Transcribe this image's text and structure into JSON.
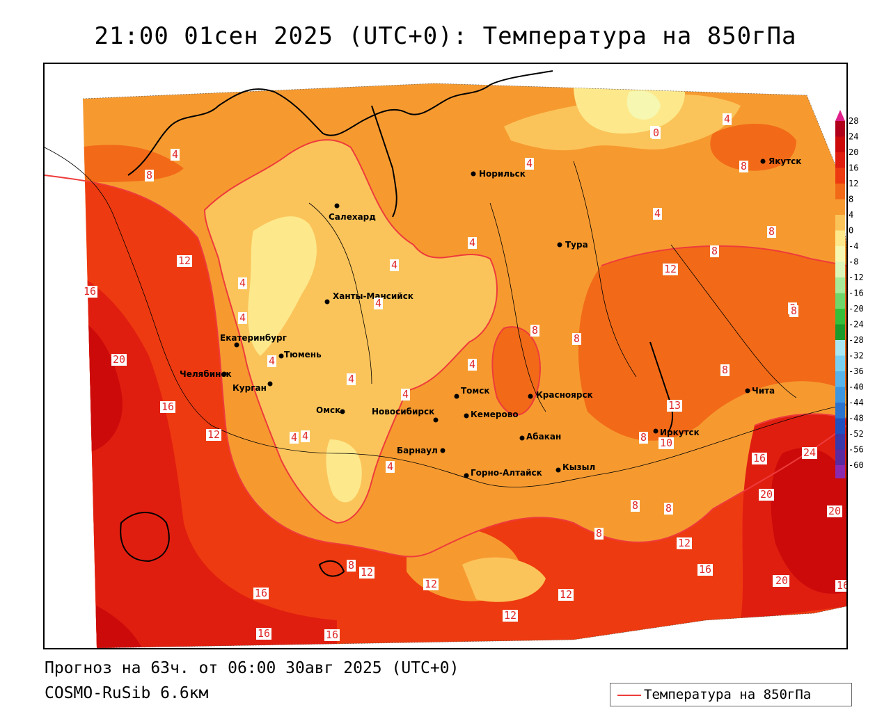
{
  "title": "21:00 01сен 2025 (UTC+0): Температура на 850гПа",
  "footer": {
    "forecast": "Прогноз на 63ч. от 06:00 30авг 2025 (UTC+0)",
    "model": "COSMO-RuSib 6.6км"
  },
  "legend": {
    "label": "Температура на 850гПа",
    "line_color": "#ee3b3b"
  },
  "colorbar": {
    "ticks": [
      "28",
      "24",
      "20",
      "16",
      "12",
      "8",
      "4",
      "0",
      "-4",
      "-8",
      "-12",
      "-16",
      "-20",
      "-24",
      "-28",
      "-32",
      "-36",
      "-40",
      "-44",
      "-48",
      "-52",
      "-56",
      "-60"
    ],
    "colors": [
      "#b0001a",
      "#cc0a0a",
      "#e01e10",
      "#ee3a10",
      "#f26a18",
      "#f69a30",
      "#fbc45a",
      "#fde98c",
      "#f6f7b0",
      "#dcf5b8",
      "#a6ea9a",
      "#6ed66a",
      "#34be3a",
      "#1a9a2a",
      "#a8e6f2",
      "#7ad0f0",
      "#58b4ea",
      "#3c96e0",
      "#2a74d0",
      "#2050c0",
      "#3838a8",
      "#5a2aa0",
      "#8a2ab0"
    ],
    "top_arrow_color": "#e0208a",
    "bottom_arrow_color": "#a020c0"
  },
  "cities": [
    {
      "name": "Норильск"
    },
    {
      "name": "Якутск"
    },
    {
      "name": "Салехард"
    },
    {
      "name": "Тура"
    },
    {
      "name": "Ханты-Мансийск"
    },
    {
      "name": "Екатеринбург"
    },
    {
      "name": "Тюмень"
    },
    {
      "name": "Челябинск"
    },
    {
      "name": "Курган"
    },
    {
      "name": "Томск"
    },
    {
      "name": "Омск"
    },
    {
      "name": "Новосибирск"
    },
    {
      "name": "Кемерово"
    },
    {
      "name": "Красноярск"
    },
    {
      "name": "Абакан"
    },
    {
      "name": "Барнаул"
    },
    {
      "name": "Горно-Алтайск"
    },
    {
      "name": "Кызыл"
    },
    {
      "name": "Иркутск"
    },
    {
      "name": "Чита"
    }
  ],
  "contour_labels": [
    "4",
    "8",
    "4",
    "4",
    "0",
    "4",
    "8",
    "4",
    "8",
    "12",
    "4",
    "4",
    "4",
    "4",
    "16",
    "4",
    "4",
    "8",
    "8",
    "8",
    "8",
    "20",
    "4",
    "4",
    "4",
    "4",
    "8",
    "16",
    "12",
    "4",
    "4",
    "13",
    "10",
    "8",
    "16",
    "24",
    "20",
    "20",
    "8",
    "12",
    "8",
    "8",
    "8",
    "12",
    "16",
    "20",
    "16",
    "12",
    "8",
    "12",
    "16",
    "12",
    "12",
    "16",
    "16",
    "20"
  ]
}
